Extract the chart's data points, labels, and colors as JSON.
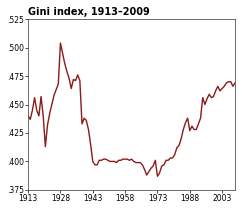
{
  "title": "Gini index, 1913–2009",
  "xlim": [
    1913,
    2009
  ],
  "ylim": [
    0.375,
    0.525
  ],
  "xticks": [
    1913,
    1928,
    1943,
    1958,
    1973,
    1988,
    2003
  ],
  "yticks": [
    0.375,
    0.4,
    0.425,
    0.45,
    0.475,
    0.5,
    0.525
  ],
  "ytick_labels": [
    ".375",
    ".400",
    ".425",
    ".450",
    ".475",
    ".500",
    ".525"
  ],
  "line_color": "#8B1A1A",
  "background_color": "#ffffff",
  "border_color": "#888888",
  "line_width": 1.0,
  "data": {
    "years": [
      1913,
      1914,
      1915,
      1916,
      1917,
      1918,
      1919,
      1920,
      1921,
      1922,
      1923,
      1924,
      1925,
      1926,
      1927,
      1928,
      1929,
      1930,
      1931,
      1932,
      1933,
      1934,
      1935,
      1936,
      1937,
      1938,
      1939,
      1940,
      1941,
      1942,
      1943,
      1944,
      1945,
      1946,
      1947,
      1948,
      1949,
      1950,
      1951,
      1952,
      1953,
      1954,
      1955,
      1956,
      1957,
      1958,
      1959,
      1960,
      1961,
      1962,
      1963,
      1964,
      1965,
      1966,
      1967,
      1968,
      1969,
      1970,
      1971,
      1972,
      1973,
      1974,
      1975,
      1976,
      1977,
      1978,
      1979,
      1980,
      1981,
      1982,
      1983,
      1984,
      1985,
      1986,
      1987,
      1988,
      1989,
      1990,
      1991,
      1992,
      1993,
      1994,
      1995,
      1996,
      1997,
      1998,
      1999,
      2000,
      2001,
      2002,
      2003,
      2004,
      2005,
      2006,
      2007,
      2008,
      2009
    ],
    "gini": [
      0.44,
      0.437,
      0.445,
      0.456,
      0.445,
      0.44,
      0.457,
      0.44,
      0.413,
      0.432,
      0.442,
      0.45,
      0.458,
      0.463,
      0.468,
      0.504,
      0.495,
      0.486,
      0.479,
      0.473,
      0.464,
      0.472,
      0.471,
      0.476,
      0.471,
      0.433,
      0.438,
      0.436,
      0.428,
      0.415,
      0.4,
      0.397,
      0.397,
      0.401,
      0.401,
      0.402,
      0.402,
      0.401,
      0.4,
      0.4,
      0.4,
      0.399,
      0.401,
      0.401,
      0.402,
      0.402,
      0.402,
      0.401,
      0.402,
      0.4,
      0.399,
      0.399,
      0.399,
      0.397,
      0.393,
      0.388,
      0.391,
      0.394,
      0.396,
      0.401,
      0.387,
      0.39,
      0.396,
      0.397,
      0.401,
      0.401,
      0.403,
      0.403,
      0.406,
      0.412,
      0.414,
      0.42,
      0.428,
      0.434,
      0.438,
      0.427,
      0.431,
      0.428,
      0.428,
      0.433,
      0.438,
      0.456,
      0.45,
      0.455,
      0.459,
      0.456,
      0.457,
      0.462,
      0.466,
      0.462,
      0.464,
      0.466,
      0.469,
      0.47,
      0.47,
      0.466,
      0.469
    ]
  }
}
